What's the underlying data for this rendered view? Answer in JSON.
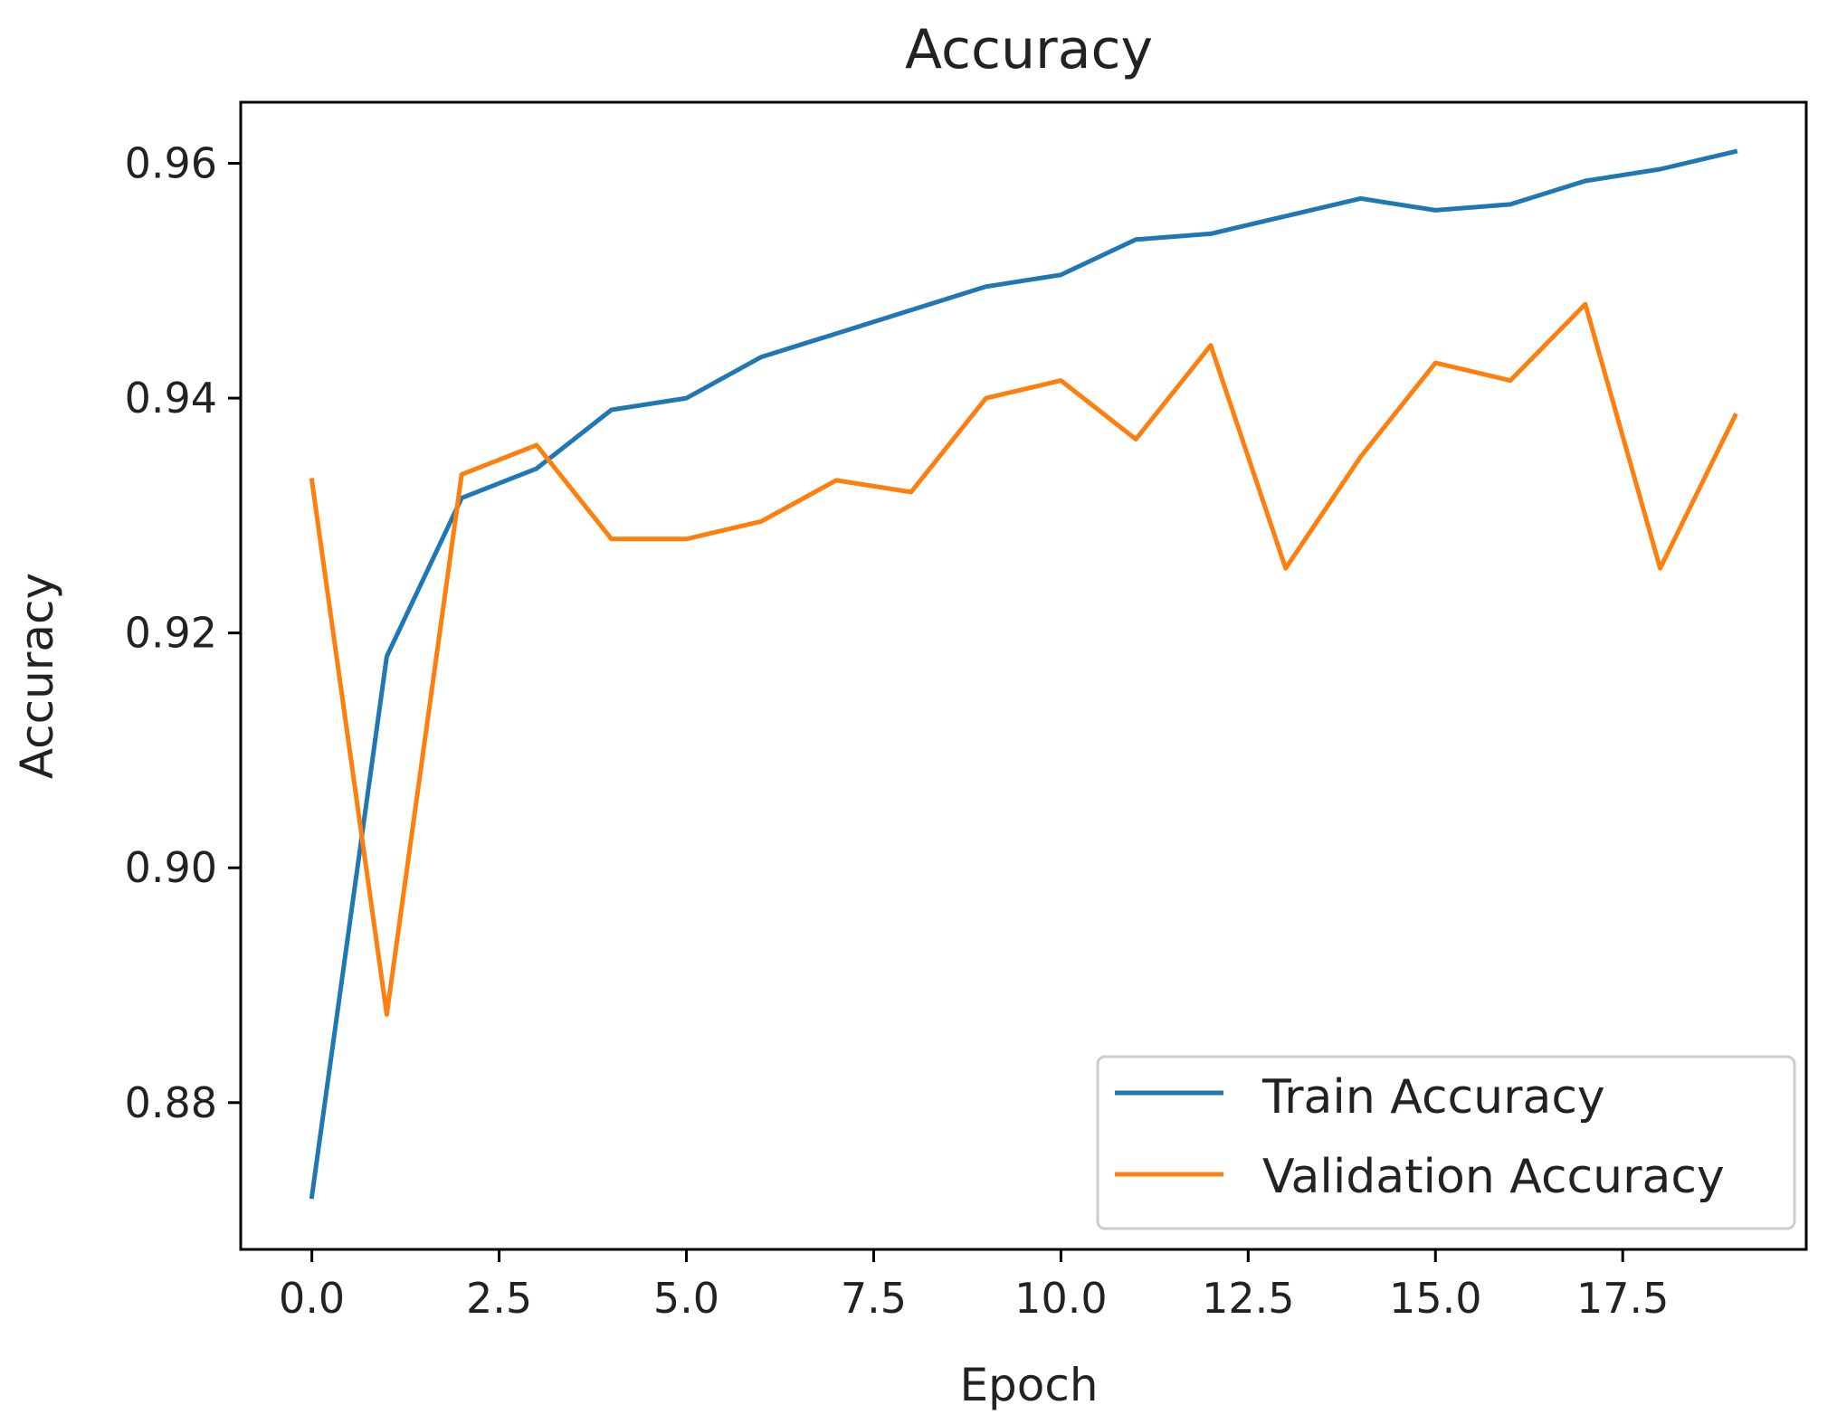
{
  "chart_data": {
    "type": "line",
    "title": "Accuracy",
    "xlabel": "Epoch",
    "ylabel": "Accuracy",
    "xlim": [
      -0.95,
      19.95
    ],
    "ylim": [
      0.8675,
      0.9652
    ],
    "x_ticks": [
      0.0,
      2.5,
      5.0,
      7.5,
      10.0,
      12.5,
      15.0,
      17.5
    ],
    "x_tick_labels": [
      "0.0",
      "2.5",
      "5.0",
      "7.5",
      "10.0",
      "12.5",
      "15.0",
      "17.5"
    ],
    "y_ticks": [
      0.88,
      0.9,
      0.92,
      0.94,
      0.96
    ],
    "y_tick_labels": [
      "0.88",
      "0.90",
      "0.92",
      "0.94",
      "0.96"
    ],
    "grid": false,
    "legend_position": "bottom-right",
    "x": [
      0,
      1,
      2,
      3,
      4,
      5,
      6,
      7,
      8,
      9,
      10,
      11,
      12,
      13,
      14,
      15,
      16,
      17,
      18,
      19
    ],
    "series": [
      {
        "name": "Train Accuracy",
        "color": "#1f77b4",
        "values": [
          0.872,
          0.918,
          0.9315,
          0.934,
          0.939,
          0.94,
          0.9435,
          0.9455,
          0.9475,
          0.9495,
          0.9505,
          0.9535,
          0.954,
          0.9555,
          0.957,
          0.956,
          0.9565,
          0.9585,
          0.9595,
          0.961
        ]
      },
      {
        "name": "Validation Accuracy",
        "color": "#ff7f0e",
        "values": [
          0.933,
          0.8875,
          0.9335,
          0.936,
          0.928,
          0.928,
          0.9295,
          0.933,
          0.932,
          0.94,
          0.9415,
          0.9365,
          0.9445,
          0.9255,
          0.935,
          0.943,
          0.9415,
          0.948,
          0.9255,
          0.9385
        ]
      }
    ]
  }
}
